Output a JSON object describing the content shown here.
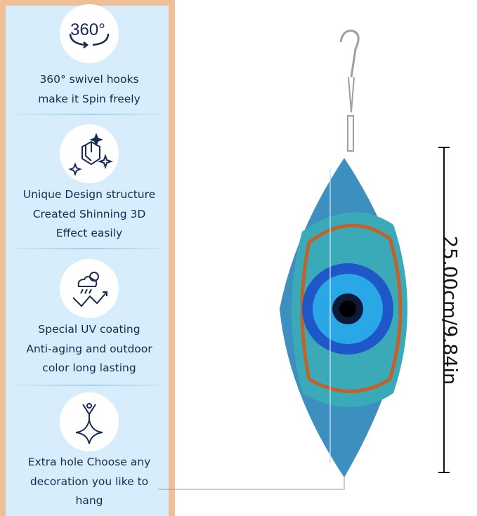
{
  "features": [
    {
      "icon": "rotate-360-icon",
      "icon_text": "360°",
      "lines": [
        "360° swivel hooks",
        "make it Spin freely"
      ]
    },
    {
      "icon": "3d-cube-sparkle-icon",
      "lines": [
        "Unique Design structure",
        "Created Shinning 3D",
        "Effect easily"
      ]
    },
    {
      "icon": "uv-weather-icon",
      "lines": [
        "Special UV coating",
        "Anti-aging and outdoor",
        "color long lasting"
      ]
    },
    {
      "icon": "hanging-hole-icon",
      "lines": [
        "Extra hole Choose any",
        "decoration you like to",
        "hang"
      ]
    }
  ],
  "dimension": "25.00cm/9.84in",
  "colors": {
    "border": "#efbf98",
    "panel": "#d7edfb",
    "text": "#1b2a52",
    "eye_blue": "#2aa8e8",
    "teal": "#3aa9b8"
  }
}
